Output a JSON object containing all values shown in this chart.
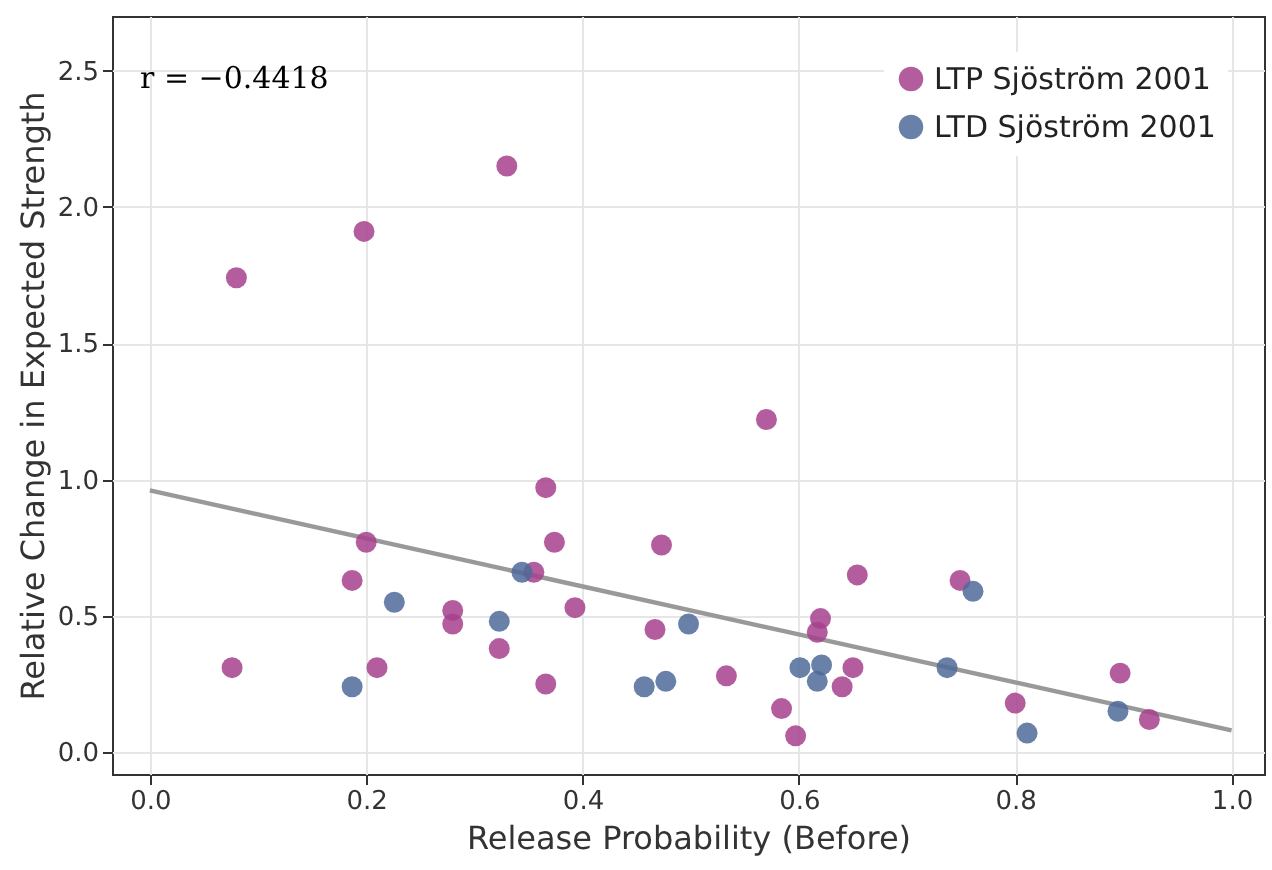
{
  "chart_data": {
    "type": "scatter",
    "xlabel": "Release Probability (Before)",
    "ylabel": "Relative Change in Expected Strength",
    "xlim": [
      -0.035,
      1.03
    ],
    "ylim": [
      -0.08,
      2.7
    ],
    "xticks": [
      {
        "value": 0,
        "label": "0.0"
      },
      {
        "value": 0.2,
        "label": "0.2"
      },
      {
        "value": 0.4,
        "label": "0.4"
      },
      {
        "value": 0.6,
        "label": "0.6"
      },
      {
        "value": 0.8,
        "label": "0.8"
      },
      {
        "value": 1,
        "label": "1.0"
      }
    ],
    "yticks": [
      {
        "value": 0,
        "label": "0.0"
      },
      {
        "value": 0.5,
        "label": "0.5"
      },
      {
        "value": 1,
        "label": "1.0"
      },
      {
        "value": 1.5,
        "label": "1.5"
      },
      {
        "value": 2,
        "label": "2.0"
      },
      {
        "value": 2.5,
        "label": "2.5"
      }
    ],
    "grid": true,
    "legend": "top right",
    "marker": "circle",
    "annotations": [
      "r = −0.4418"
    ],
    "series": [
      {
        "name": "LTP Sjöström 2001",
        "color": "#a6418e",
        "x": [
          0.076,
          0.08,
          0.198,
          0.33,
          0.2,
          0.187,
          0.21,
          0.28,
          0.28,
          0.323,
          0.366,
          0.374,
          0.355,
          0.393,
          0.366,
          0.473,
          0.467,
          0.57,
          0.533,
          0.584,
          0.597,
          0.62,
          0.617,
          0.64,
          0.65,
          0.654,
          0.749,
          0.8,
          0.897,
          0.924
        ],
        "values": [
          0.31,
          1.74,
          1.91,
          2.15,
          0.77,
          0.63,
          0.31,
          0.52,
          0.47,
          0.38,
          0.97,
          0.77,
          0.66,
          0.53,
          0.25,
          0.76,
          0.45,
          1.22,
          0.28,
          0.16,
          0.06,
          0.49,
          0.44,
          0.24,
          0.31,
          0.65,
          0.63,
          0.18,
          0.29,
          0.12
        ]
      },
      {
        "name": "LTD Sjöström 2001",
        "color": "#4f6a9a",
        "x": [
          0.187,
          0.226,
          0.323,
          0.344,
          0.457,
          0.477,
          0.498,
          0.601,
          0.617,
          0.621,
          0.737,
          0.761,
          0.811,
          0.895
        ],
        "values": [
          0.24,
          0.55,
          0.48,
          0.66,
          0.24,
          0.26,
          0.47,
          0.31,
          0.26,
          0.32,
          0.31,
          0.59,
          0.07,
          0.15
        ]
      },
      {
        "type": "line",
        "color": "#999999",
        "marker": "none",
        "x": [
          0,
          1
        ],
        "values": [
          0.96,
          0.08
        ]
      }
    ]
  }
}
